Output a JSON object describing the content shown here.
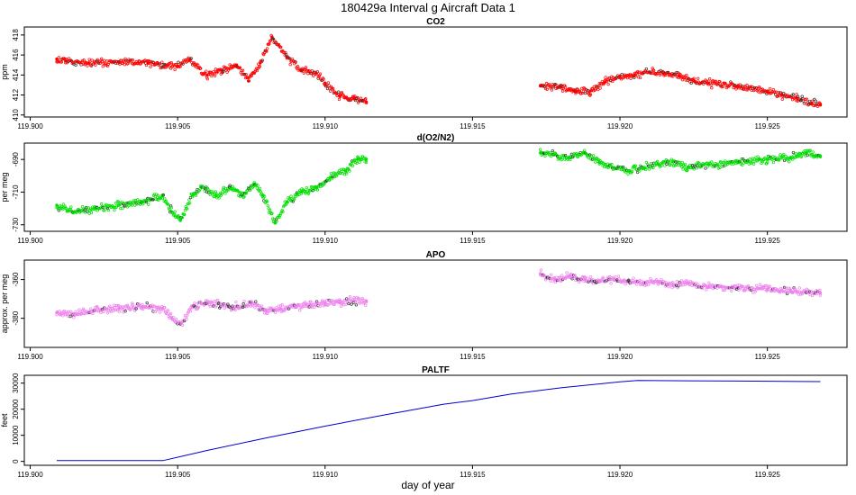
{
  "figure": {
    "title": "180429a   Interval g Aircraft Data 1",
    "xlabel": "day of year"
  },
  "chart_data": [
    {
      "type": "scatter",
      "title": "CO2",
      "ylabel": "ppm",
      "color": "#ff0000",
      "xlim": [
        119.8998,
        119.9277
      ],
      "ylim": [
        409.8,
        418.8
      ],
      "xticks": [
        119.9,
        119.905,
        119.91,
        119.915,
        119.92,
        119.925
      ],
      "xticklabels": [
        "119.900",
        "119.905",
        "119.910",
        "119.915",
        "119.920",
        "119.925"
      ],
      "yticks": [
        410,
        412,
        414,
        416,
        418
      ],
      "yticklabels": [
        "410",
        "412",
        "414",
        "416",
        "418"
      ],
      "segments": [
        {
          "x": [
            119.9009,
            119.9012,
            119.902,
            119.903,
            119.904,
            119.9046,
            119.905,
            119.9054,
            119.906,
            119.9065,
            119.907,
            119.9074,
            119.9078,
            119.9082,
            119.9087,
            119.9092,
            119.9097,
            119.91,
            119.9105,
            119.911,
            119.9114
          ],
          "y": [
            415.6,
            415.4,
            415.2,
            415.3,
            415.2,
            415.0,
            414.9,
            415.5,
            414.0,
            414.5,
            415.0,
            413.4,
            415.2,
            417.8,
            415.8,
            414.4,
            414.2,
            413.2,
            411.9,
            411.6,
            411.3
          ]
        },
        {
          "x": [
            119.9173,
            119.918,
            119.9185,
            119.919,
            119.9195,
            119.92,
            119.9205,
            119.921,
            119.9215,
            119.922,
            119.9225,
            119.923,
            119.924,
            119.925,
            119.9255,
            119.926,
            119.9265,
            119.9268
          ],
          "y": [
            412.9,
            412.8,
            412.3,
            412.4,
            413.3,
            413.9,
            414.0,
            414.3,
            414.1,
            413.9,
            413.4,
            413.2,
            412.9,
            412.4,
            412.0,
            411.7,
            411.1,
            411.0
          ]
        }
      ]
    },
    {
      "type": "scatter",
      "title": "d(O2/N2)",
      "ylabel": "per meg",
      "color": "#00e000",
      "xlim": [
        119.8998,
        119.9277
      ],
      "ylim": [
        -734,
        -680
      ],
      "xticks": [
        119.9,
        119.905,
        119.91,
        119.915,
        119.92,
        119.925
      ],
      "xticklabels": [
        "119.900",
        "119.905",
        "119.910",
        "119.915",
        "119.920",
        "119.925"
      ],
      "yticks": [
        -730,
        -710,
        -690
      ],
      "yticklabels": [
        "-730",
        "-710",
        "-690"
      ],
      "segments": [
        {
          "x": [
            119.9009,
            119.9015,
            119.9022,
            119.903,
            119.9038,
            119.9045,
            119.9048,
            119.9051,
            119.9055,
            119.9058,
            119.9063,
            119.9068,
            119.9072,
            119.9076,
            119.9079,
            119.9083,
            119.9087,
            119.9092,
            119.9097,
            119.9102,
            119.9107,
            119.9111,
            119.9114
          ],
          "y": [
            -718,
            -722,
            -720,
            -718,
            -716,
            -712,
            -722,
            -727,
            -712,
            -707,
            -712,
            -707,
            -712,
            -705,
            -712,
            -729,
            -716,
            -710,
            -707,
            -701,
            -697,
            -690,
            -690
          ]
        },
        {
          "x": [
            119.9173,
            119.9178,
            119.9183,
            119.9188,
            119.9193,
            119.9198,
            119.9203,
            119.9208,
            119.9213,
            119.9218,
            119.9223,
            119.923,
            119.924,
            119.925,
            119.9258,
            119.9263,
            119.9268
          ],
          "y": [
            -686,
            -687,
            -689,
            -686,
            -692,
            -695,
            -697,
            -695,
            -693,
            -691,
            -695,
            -693,
            -692,
            -690,
            -689,
            -686,
            -688
          ]
        }
      ]
    },
    {
      "type": "scatter",
      "title": "APO",
      "ylabel": "approx. per meg",
      "color": "#ee82ee",
      "xlim": [
        119.8998,
        119.9277
      ],
      "ylim": [
        -395,
        -350
      ],
      "xticks": [
        119.9,
        119.905,
        119.91,
        119.915,
        119.92,
        119.925
      ],
      "xticklabels": [
        "119.900",
        "119.905",
        "119.910",
        "119.915",
        "119.920",
        "119.925"
      ],
      "yticks": [
        -380,
        -360
      ],
      "yticklabels": [
        "-380",
        "-360"
      ],
      "segments": [
        {
          "x": [
            119.9009,
            119.9015,
            119.9022,
            119.903,
            119.9038,
            119.9045,
            119.9048,
            119.9051,
            119.9055,
            119.906,
            119.9065,
            119.907,
            119.9075,
            119.908,
            119.9085,
            119.909,
            119.9095,
            119.91,
            119.9105,
            119.911,
            119.9114
          ],
          "y": [
            -377,
            -378,
            -376,
            -375,
            -374,
            -375,
            -380,
            -383,
            -374,
            -372,
            -373,
            -374,
            -372,
            -376,
            -375,
            -374,
            -373,
            -372,
            -372,
            -371,
            -371
          ]
        },
        {
          "x": [
            119.9173,
            119.9178,
            119.9183,
            119.9188,
            119.9193,
            119.9198,
            119.9203,
            119.9208,
            119.9213,
            119.9218,
            119.9223,
            119.923,
            119.924,
            119.925,
            119.9258,
            119.9263,
            119.9268
          ],
          "y": [
            -357,
            -360,
            -358,
            -360,
            -361,
            -360,
            -361,
            -362,
            -361,
            -363,
            -362,
            -364,
            -364,
            -365,
            -366,
            -366,
            -367
          ]
        }
      ]
    },
    {
      "type": "line",
      "title": "PALTF",
      "ylabel": "feet",
      "color": "#0000cc",
      "xlim": [
        119.8998,
        119.9277
      ],
      "ylim": [
        -1500,
        33000
      ],
      "xticks": [
        119.9,
        119.905,
        119.91,
        119.915,
        119.92,
        119.925
      ],
      "xticklabels": [
        "119.900",
        "119.905",
        "119.910",
        "119.915",
        "119.920",
        "119.925"
      ],
      "yticks": [
        0,
        10000,
        20000,
        30000
      ],
      "yticklabels": [
        "0",
        "10000",
        "20000",
        "30000"
      ],
      "segments": [
        {
          "x": [
            119.9009,
            119.9045,
            119.906,
            119.908,
            119.91,
            119.912,
            119.914,
            119.915,
            119.9163,
            119.918,
            119.92,
            119.9206,
            119.924,
            119.9268
          ],
          "y": [
            300,
            300,
            4200,
            9000,
            13500,
            17800,
            21900,
            23300,
            25800,
            28200,
            30500,
            31000,
            30800,
            30600
          ]
        }
      ]
    }
  ]
}
